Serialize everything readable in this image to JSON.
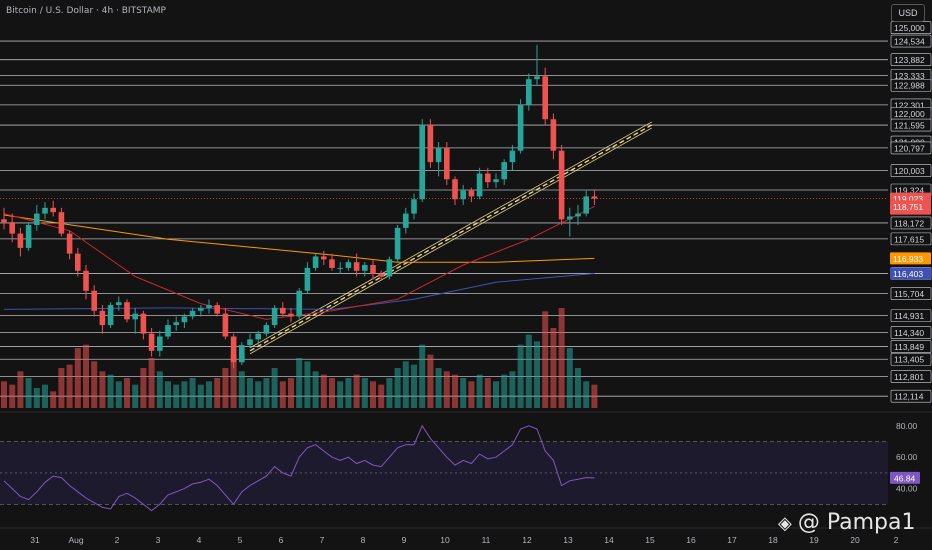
{
  "header": {
    "title": "Bitcoin / U.S. Dollar · 4h · BITSTAMP",
    "currency": "USD"
  },
  "watermark": {
    "icon": "binance-diamond-icon",
    "text": "@ Pampa1"
  },
  "colors": {
    "bull": "#26a69a",
    "bear": "#ef5350",
    "ma_orange": "#ff9800",
    "ma_blue": "#3f51b5",
    "ma_red": "#c62828",
    "rsi": "#7e57c2",
    "trendline": "#e8d48a",
    "level": "#d1d4dc"
  },
  "chart_data": {
    "type": "candlestick",
    "title": "Bitcoin / U.S. Dollar · 4h · BITSTAMP",
    "price_axis": {
      "ylim": [
        111700,
        125200
      ],
      "tick_labels": [
        "125,000",
        "124,534",
        "123,882",
        "123,333",
        "122,988",
        "122,301",
        "122,000",
        "121,595",
        "121,000",
        "120,797",
        "120,003",
        "119,324",
        "119,023",
        "01:52:12",
        "118,751",
        "118,172",
        "117,615",
        "116,933",
        "116,406",
        "116,403",
        "115,704",
        "114,931",
        "114,340",
        "113,849",
        "113,405",
        "112,801",
        "112,114"
      ],
      "horizontal_levels": [
        124534,
        123882,
        123333,
        122988,
        122301,
        121595,
        120797,
        120003,
        119324,
        118172,
        117615,
        116406,
        115704,
        114931,
        114340,
        113849,
        113405,
        112801,
        112114
      ],
      "badges": [
        {
          "label": "119,023",
          "sub": "01:52:12",
          "value": 119023,
          "color": "#ef5350"
        },
        {
          "label": "118,751",
          "value": 118751,
          "color": "#ef5350"
        },
        {
          "label": "116,933",
          "value": 116933,
          "color": "#ff9800"
        },
        {
          "label": "116,403",
          "value": 116403,
          "color": "#3f51b5"
        }
      ]
    },
    "time_axis": {
      "tick_labels": [
        "31",
        "Aug",
        "2",
        "3",
        "4",
        "5",
        "6",
        "7",
        "8",
        "9",
        "10",
        "11",
        "12",
        "13",
        "14",
        "15",
        "16",
        "17",
        "18",
        "19",
        "20",
        "2"
      ]
    },
    "candles_ohlc": [
      [
        118300,
        118700,
        117950,
        118200
      ],
      [
        118200,
        118500,
        117500,
        117800
      ],
      [
        117800,
        118000,
        117000,
        117300
      ],
      [
        117300,
        118200,
        117200,
        118100
      ],
      [
        118100,
        118800,
        117900,
        118500
      ],
      [
        118500,
        118900,
        118300,
        118700
      ],
      [
        118700,
        118950,
        118400,
        118550
      ],
      [
        118550,
        118700,
        117700,
        117800
      ],
      [
        117800,
        117900,
        116900,
        117100
      ],
      [
        117100,
        117300,
        116300,
        116500
      ],
      [
        116500,
        116700,
        115500,
        115800
      ],
      [
        115800,
        116000,
        114900,
        115100
      ],
      [
        115100,
        115300,
        114300,
        114600
      ],
      [
        114600,
        115400,
        114500,
        115300
      ],
      [
        115300,
        115600,
        115100,
        115400
      ],
      [
        115400,
        115500,
        114700,
        114800
      ],
      [
        114800,
        115200,
        114300,
        115000
      ],
      [
        115000,
        115100,
        114100,
        114300
      ],
      [
        114300,
        114500,
        113500,
        113700
      ],
      [
        113700,
        114400,
        113500,
        114200
      ],
      [
        114200,
        114800,
        114100,
        114600
      ],
      [
        114600,
        114900,
        114400,
        114700
      ],
      [
        114700,
        115000,
        114500,
        114900
      ],
      [
        114900,
        115200,
        114800,
        115100
      ],
      [
        115100,
        115300,
        114900,
        115200
      ],
      [
        115200,
        115500,
        115000,
        115300
      ],
      [
        115300,
        115400,
        114900,
        115000
      ],
      [
        115000,
        115200,
        114100,
        114200
      ],
      [
        114200,
        114300,
        113100,
        113300
      ],
      [
        113300,
        114000,
        113200,
        113900
      ],
      [
        113900,
        114300,
        113800,
        114100
      ],
      [
        114100,
        114400,
        113900,
        114300
      ],
      [
        114300,
        114700,
        114200,
        114600
      ],
      [
        114600,
        115300,
        114500,
        115200
      ],
      [
        115200,
        115400,
        114900,
        115000
      ],
      [
        115000,
        115200,
        114700,
        114900
      ],
      [
        114900,
        115900,
        114800,
        115800
      ],
      [
        115800,
        116800,
        115700,
        116600
      ],
      [
        116600,
        117100,
        116500,
        117000
      ],
      [
        117000,
        117200,
        116700,
        116900
      ],
      [
        116900,
        117100,
        116500,
        116600
      ],
      [
        116600,
        116800,
        116400,
        116600
      ],
      [
        116600,
        116900,
        116500,
        116800
      ],
      [
        116800,
        117100,
        116300,
        116500
      ],
      [
        116500,
        116800,
        116300,
        116700
      ],
      [
        116700,
        116900,
        116200,
        116400
      ],
      [
        116400,
        116500,
        116200,
        116300
      ],
      [
        116300,
        117000,
        116200,
        116900
      ],
      [
        116900,
        118100,
        116800,
        118000
      ],
      [
        118000,
        118700,
        117800,
        118500
      ],
      [
        118500,
        119200,
        118300,
        119000
      ],
      [
        119000,
        121800,
        118900,
        121600
      ],
      [
        121600,
        121800,
        120100,
        120300
      ],
      [
        120300,
        121000,
        119800,
        120800
      ],
      [
        120800,
        121000,
        119500,
        119700
      ],
      [
        119700,
        119800,
        118800,
        119000
      ],
      [
        119000,
        119500,
        118800,
        119300
      ],
      [
        119300,
        119400,
        118900,
        119100
      ],
      [
        119100,
        120100,
        119000,
        119900
      ],
      [
        119900,
        120100,
        119400,
        119600
      ],
      [
        119600,
        119900,
        119400,
        119700
      ],
      [
        119700,
        120400,
        119500,
        120300
      ],
      [
        120300,
        120900,
        120000,
        120700
      ],
      [
        120700,
        122500,
        120600,
        122300
      ],
      [
        122300,
        123400,
        122100,
        123200
      ],
      [
        123200,
        124400,
        123000,
        123300
      ],
      [
        123300,
        123600,
        121600,
        121800
      ],
      [
        121800,
        122000,
        120400,
        120700
      ],
      [
        120700,
        120900,
        118100,
        118300
      ],
      [
        118300,
        118700,
        117700,
        118400
      ],
      [
        118400,
        118800,
        118100,
        118500
      ],
      [
        118500,
        119300,
        118400,
        119100
      ],
      [
        119100,
        119300,
        118800,
        119023
      ]
    ],
    "volume": [
      40,
      35,
      55,
      45,
      30,
      35,
      25,
      60,
      65,
      90,
      95,
      70,
      55,
      50,
      40,
      45,
      35,
      60,
      75,
      55,
      40,
      35,
      40,
      45,
      35,
      40,
      45,
      60,
      80,
      55,
      45,
      40,
      45,
      60,
      40,
      45,
      75,
      70,
      55,
      50,
      45,
      40,
      45,
      50,
      45,
      40,
      35,
      45,
      60,
      70,
      65,
      95,
      80,
      60,
      55,
      50,
      45,
      40,
      50,
      45,
      40,
      50,
      55,
      95,
      110,
      100,
      145,
      120,
      150,
      90,
      60,
      40,
      35
    ],
    "moving_averages": [
      {
        "color": "#ff9800",
        "points": [
          [
            0,
            118450
          ],
          [
            20,
            117600
          ],
          [
            40,
            117050
          ],
          [
            48,
            116800
          ],
          [
            60,
            116800
          ],
          [
            72,
            116933
          ]
        ]
      },
      {
        "color": "#3f51b5",
        "points": [
          [
            0,
            115150
          ],
          [
            20,
            115200
          ],
          [
            40,
            115150
          ],
          [
            50,
            115500
          ],
          [
            60,
            116100
          ],
          [
            72,
            116403
          ]
        ]
      },
      {
        "color": "#c62828",
        "points": [
          [
            0,
            118500
          ],
          [
            8,
            117900
          ],
          [
            16,
            116300
          ],
          [
            24,
            115350
          ],
          [
            32,
            114800
          ],
          [
            40,
            115100
          ],
          [
            48,
            115500
          ],
          [
            56,
            116700
          ],
          [
            64,
            117600
          ],
          [
            72,
            118751
          ]
        ]
      }
    ],
    "trendline_channel": [
      [
        30,
        113700
      ],
      [
        79,
        121600
      ]
    ],
    "rsi": {
      "ylim": [
        20,
        85
      ],
      "tick_labels": [
        "80.00",
        "60.00",
        "40.00"
      ],
      "levels": [
        70,
        50,
        30
      ],
      "current_label": "46.84",
      "values": [
        45,
        40,
        35,
        33,
        38,
        44,
        48,
        47,
        42,
        38,
        34,
        31,
        28,
        27,
        35,
        37,
        34,
        30,
        26,
        30,
        36,
        38,
        40,
        43,
        44,
        46,
        42,
        36,
        30,
        38,
        42,
        45,
        48,
        54,
        50,
        48,
        60,
        66,
        68,
        64,
        60,
        58,
        60,
        56,
        58,
        55,
        54,
        60,
        66,
        68,
        68,
        80,
        72,
        66,
        60,
        55,
        58,
        56,
        62,
        59,
        60,
        64,
        68,
        78,
        80,
        78,
        64,
        58,
        42,
        45,
        46,
        47,
        46.84
      ]
    }
  }
}
